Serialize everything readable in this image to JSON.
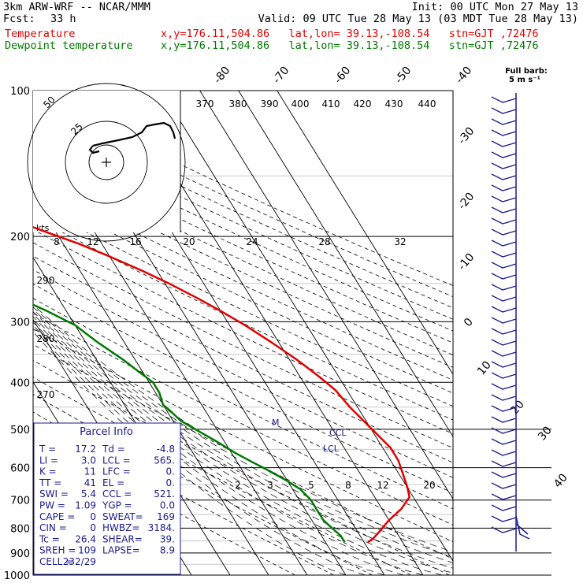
{
  "header": {
    "model": "3km ARW-WRF -- NCAR/MMM",
    "init": "Init: 00 UTC Mon 27 May 13",
    "fcst_label": "Fcst:",
    "fcst_value": "33 h",
    "valid": "Valid: 09 UTC Tue 28 May 13 (03 MDT Tue 28 May 13)",
    "temp_label": "Temperature",
    "temp_loc": "x,y=176.11,504.86   lat,lon= 39.13,-108.54   stn=GJT ,72476",
    "dew_label": "Dewpoint temperature",
    "dew_loc": "x,y=176.11,504.86   lat,lon= 39.13,-108.54   stn=GJT ,72476"
  },
  "colors": {
    "temperature": "#e00000",
    "dewpoint": "#007a00",
    "hodograph": "#000000",
    "wind_barbs": "#1a1a8c",
    "text": "#000000"
  },
  "full_barb": {
    "label": "Full barb:",
    "value": "5 m s⁻¹"
  },
  "parcel": {
    "title": "Parcel Info",
    "rows": [
      [
        "T  =",
        "17.2",
        "Td =",
        "-4.8"
      ],
      [
        "LI =",
        "3.0",
        "LCL =",
        "565."
      ],
      [
        "K  =",
        "11",
        "LFC =",
        "0."
      ],
      [
        "TT =",
        "41",
        "EL  =",
        "0."
      ],
      [
        "SWI =",
        "5.4",
        "CCL =",
        "521."
      ],
      [
        "PW =",
        "1.09",
        "YGP =",
        "0.0"
      ],
      [
        "CAPE =",
        "0",
        "SWEAT=",
        "169"
      ],
      [
        "CIN =",
        "0",
        "HWBZ=",
        "3184."
      ],
      [
        "Tc =",
        "26.4",
        "SHEAR=",
        "39."
      ],
      [
        "SREH =",
        "109",
        "LAPSE=",
        "8.9"
      ],
      [
        "CELL =",
        "232/29",
        "",
        ""
      ]
    ]
  },
  "chart_data": {
    "type": "line",
    "title": "",
    "pressure_levels": [
      100,
      200,
      300,
      400,
      500,
      600,
      700,
      800,
      900,
      1000
    ],
    "pressure_labels": [
      "100",
      "200",
      "300",
      "400",
      "500",
      "600",
      "700",
      "800",
      "900",
      "1000"
    ],
    "isotherm_labels": [
      "-80",
      "-70",
      "-60",
      "-50",
      "-40",
      "-30",
      "-20",
      "-10",
      "0",
      "10",
      "20",
      "30",
      "40"
    ],
    "theta_labels": [
      "370",
      "380",
      "390",
      "400",
      "410",
      "420",
      "430",
      "440"
    ],
    "theta_left_labels": [
      "290",
      "280",
      "270"
    ],
    "mixing_ratio_labels": [
      "2",
      "3",
      "5",
      "8",
      "12",
      "20"
    ],
    "hodo_kts_label": "kts",
    "hodo_speed_labels": [
      "8",
      "12",
      "16",
      "20",
      "24",
      "28",
      "32"
    ],
    "hodo_ring_labels": [
      "50",
      "25"
    ],
    "ccl_label": "CCL",
    "lcl_label": "LCL",
    "lfc_mark": "M",
    "series": [
      {
        "name": "Temperature",
        "points": [
          [
            1,
            855
          ],
          [
            3,
            840
          ],
          [
            6,
            810
          ],
          [
            10,
            770
          ],
          [
            15,
            730
          ],
          [
            19,
            690
          ],
          [
            20,
            660
          ],
          [
            21,
            620
          ],
          [
            22,
            580
          ],
          [
            22,
            545
          ],
          [
            21,
            520
          ],
          [
            20,
            495
          ],
          [
            18,
            450
          ],
          [
            17,
            415
          ],
          [
            15,
            390
          ],
          [
            12,
            360
          ],
          [
            8,
            330
          ],
          [
            4,
            305
          ],
          [
            0,
            285
          ],
          [
            -4,
            268
          ],
          [
            -9,
            250
          ],
          [
            -14,
            235
          ],
          [
            -20,
            220
          ],
          [
            -26,
            207
          ],
          [
            -33,
            195
          ],
          [
            -42,
            180
          ],
          [
            -49,
            168
          ],
          [
            -55,
            150
          ],
          [
            -57,
            135
          ],
          [
            -59,
            122
          ],
          [
            -62,
            110
          ],
          [
            -64,
            100
          ]
        ]
      },
      {
        "name": "Dewpoint temperature",
        "points": [
          [
            -5,
            855
          ],
          [
            -5,
            830
          ],
          [
            -6,
            800
          ],
          [
            -7,
            770
          ],
          [
            -7,
            740
          ],
          [
            -7,
            700
          ],
          [
            -8,
            665
          ],
          [
            -10,
            640
          ],
          [
            -13,
            610
          ],
          [
            -16,
            585
          ],
          [
            -19,
            560
          ],
          [
            -22,
            530
          ],
          [
            -25,
            505
          ],
          [
            -28,
            480
          ],
          [
            -29,
            460
          ],
          [
            -30,
            445
          ],
          [
            -29,
            420
          ],
          [
            -29,
            400
          ],
          [
            -31,
            380
          ],
          [
            -33,
            360
          ],
          [
            -37,
            330
          ],
          [
            -40,
            305
          ],
          [
            -45,
            285
          ],
          [
            -53,
            260
          ],
          [
            -59,
            240
          ],
          [
            -64,
            220
          ],
          [
            -68,
            205
          ],
          [
            -74,
            190
          ],
          [
            -79,
            170
          ],
          [
            -83,
            155
          ],
          [
            -88,
            140
          ],
          [
            -93,
            120
          ],
          [
            -96,
            100
          ]
        ]
      }
    ]
  }
}
